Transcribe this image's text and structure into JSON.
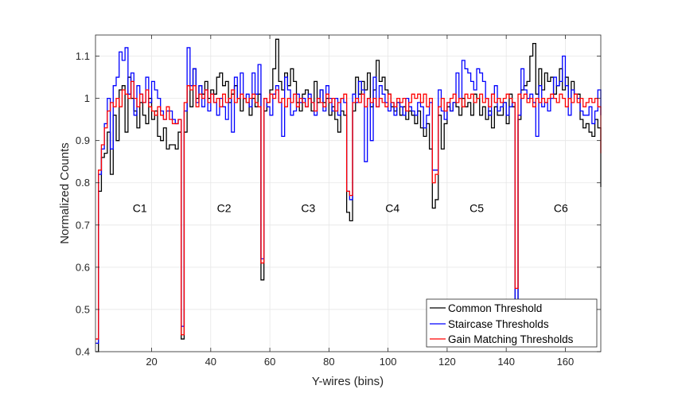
{
  "chart_data": {
    "type": "line",
    "style": "stairs",
    "title": "",
    "xlabel": "Y-wires (bins)",
    "ylabel": "Normalized Counts",
    "xlim": [
      1,
      172
    ],
    "ylim": [
      0.4,
      1.15
    ],
    "xticks": [
      20,
      40,
      60,
      80,
      100,
      120,
      140,
      160
    ],
    "yticks": [
      0.4,
      0.5,
      0.6,
      0.7,
      0.8,
      0.9,
      1.0,
      1.1
    ],
    "ytick_labels": [
      "0.4",
      "0.5",
      "0.6",
      "0.7",
      "0.8",
      "0.9",
      "1",
      "1.1"
    ],
    "grid": true,
    "legend_position": "bottom-right",
    "annotations": [
      {
        "text": "C1",
        "x": 16,
        "y": 0.74
      },
      {
        "text": "C2",
        "x": 44.5,
        "y": 0.74
      },
      {
        "text": "C3",
        "x": 73,
        "y": 0.74
      },
      {
        "text": "C4",
        "x": 101.5,
        "y": 0.74
      },
      {
        "text": "C5",
        "x": 130,
        "y": 0.74
      },
      {
        "text": "C6",
        "x": 158.5,
        "y": 0.74
      }
    ],
    "series": [
      {
        "name": "Common Threshold",
        "color": "#000000",
        "x_start": 1,
        "values": [
          0.4,
          0.78,
          0.86,
          0.87,
          0.92,
          0.82,
          0.96,
          0.9,
          1.02,
          1.03,
          0.92,
          1.05,
          1.0,
          0.97,
          0.93,
          0.99,
          0.96,
          0.94,
          1.0,
          0.95,
          0.97,
          0.91,
          0.9,
          0.93,
          0.88,
          0.89,
          0.89,
          0.88,
          0.92,
          0.43,
          0.92,
          1.03,
          0.98,
          1.07,
          1.0,
          1.03,
          1.01,
          1.04,
          1.0,
          1.02,
          1.01,
          1.05,
          1.06,
          1.03,
          1.04,
          0.99,
          1.01,
          1.03,
          1.0,
          0.97,
          1.0,
          0.99,
          0.96,
          1.0,
          0.98,
          1.01,
          0.57,
          0.97,
          0.99,
          1.02,
          1.07,
          1.14,
          1.04,
          1.02,
          1.06,
          1.03,
          1.07,
          1.04,
          0.99,
          0.97,
          1.01,
          1.02,
          1.0,
          0.97,
          1.04,
          0.99,
          1.02,
          0.99,
          1.0,
          0.96,
          0.98,
          0.95,
          0.92,
          0.97,
          0.96,
          0.73,
          0.71,
          0.97,
          1.05,
          1.01,
          1.04,
          1.02,
          1.06,
          0.98,
          1.02,
          1.09,
          1.04,
          1.05,
          1.02,
          1.01,
          0.98,
          0.97,
          0.99,
          0.96,
          0.98,
          0.95,
          0.97,
          0.96,
          0.94,
          0.97,
          0.93,
          0.91,
          0.94,
          0.88,
          0.74,
          0.76,
          0.96,
          0.88,
          0.94,
          0.98,
          0.97,
          0.99,
          0.98,
          0.96,
          1.0,
          0.98,
          0.99,
          0.96,
          1.01,
          1.0,
          0.96,
          0.98,
          0.95,
          0.97,
          0.93,
          0.98,
          0.96,
          0.96,
          0.99,
          0.94,
          1.01,
          0.98,
          0.51,
          0.95,
          1.02,
          1.03,
          1.04,
          1.1,
          1.13,
          1.01,
          1.07,
          1.02,
          1.06,
          1.04,
          1.05,
          1.01,
          1.03,
          1.07,
          1.02,
          1.05,
          1.0,
          1.04,
          1.01,
          1.01,
          0.95,
          0.93,
          0.94,
          0.92,
          0.91,
          0.95,
          0.93,
          0.79
        ]
      },
      {
        "name": "Staircase Thresholds",
        "color": "#0000ff",
        "x_start": 1,
        "values": [
          0.42,
          0.82,
          0.88,
          0.94,
          1.0,
          0.88,
          1.03,
          1.05,
          1.11,
          1.09,
          1.12,
          1.01,
          1.06,
          0.96,
          1.03,
          1.01,
          0.99,
          1.05,
          0.99,
          1.04,
          1.02,
          1.0,
          0.97,
          0.95,
          0.97,
          0.97,
          0.95,
          0.94,
          0.95,
          0.46,
          0.97,
          1.12,
          1.03,
          1.07,
          0.99,
          1.03,
          0.98,
          1.02,
          0.97,
          1.01,
          0.99,
          0.96,
          1.0,
          0.98,
          0.95,
          1.0,
          0.92,
          1.05,
          1.0,
          1.06,
          1.0,
          1.01,
          0.98,
          1.06,
          1.01,
          1.08,
          0.62,
          1.0,
          0.98,
          0.96,
          1.01,
          1.03,
          0.99,
          0.91,
          1.05,
          1.02,
          0.96,
          0.97,
          1.01,
          0.99,
          1.0,
          0.98,
          1.01,
          0.99,
          0.96,
          1.0,
          1.02,
          0.97,
          1.03,
          1.0,
          0.97,
          1.0,
          0.96,
          1.0,
          0.99,
          0.78,
          0.76,
          1.01,
          0.99,
          1.04,
          1.02,
          0.85,
          1.0,
          0.9,
          1.05,
          0.98,
          1.03,
          1.01,
          0.99,
          0.97,
          0.99,
          0.96,
          0.99,
          0.98,
          0.96,
          1.0,
          0.98,
          0.97,
          0.96,
          0.99,
          0.98,
          0.93,
          0.96,
          0.99,
          0.83,
          0.83,
          1.02,
          0.97,
          0.95,
          0.99,
          0.97,
          0.99,
          1.06,
          1.0,
          1.09,
          1.07,
          1.06,
          1.04,
          1.02,
          1.07,
          1.06,
          1.04,
          1.0,
          0.96,
          1.01,
          1.03,
          0.97,
          0.98,
          0.99,
          0.96,
          0.98,
          0.99,
          0.52,
          0.96,
          1.07,
          1.02,
          1.0,
          1.01,
          0.99,
          0.91,
          1.03,
          0.98,
          0.99,
          0.97,
          1.0,
          1.05,
          1.03,
          1.04,
          1.1,
          1.03,
          0.96,
          1.02,
          1.01,
          1.0,
          0.97,
          0.96,
          0.96,
          0.98,
          0.94,
          0.97,
          1.02,
          0.96,
          0.98
        ]
      },
      {
        "name": "Gain Matching Thresholds",
        "color": "#ff0000",
        "x_start": 1,
        "values": [
          0.43,
          0.83,
          0.89,
          0.93,
          0.97,
          0.99,
          0.98,
          1.0,
          0.98,
          1.02,
          1.01,
          1.0,
          1.04,
          1.0,
          0.98,
          1.01,
          0.99,
          1.02,
          0.98,
          0.97,
          0.96,
          0.98,
          0.96,
          0.95,
          0.98,
          0.95,
          0.94,
          0.94,
          0.95,
          0.44,
          0.99,
          1.03,
          1.02,
          1.03,
          0.98,
          1.01,
          1.0,
          1.02,
          0.99,
          1.01,
          0.99,
          1.0,
          0.98,
          1.01,
          0.99,
          1.0,
          1.02,
          0.99,
          1.0,
          1.01,
          1.0,
          0.99,
          1.0,
          1.01,
          0.99,
          0.98,
          0.61,
          1.0,
          0.99,
          1.01,
          1.0,
          1.02,
          0.99,
          1.0,
          0.98,
          1.0,
          0.99,
          1.01,
          0.98,
          1.0,
          0.99,
          0.98,
          1.0,
          0.99,
          0.97,
          1.0,
          0.99,
          0.98,
          1.01,
          0.99,
          1.0,
          0.97,
          0.99,
          1.0,
          1.01,
          0.78,
          0.77,
          0.99,
          1.0,
          0.99,
          1.01,
          0.98,
          1.0,
          0.99,
          1.0,
          0.98,
          1.0,
          0.99,
          0.98,
          1.01,
          0.99,
          0.98,
          1.0,
          0.99,
          1.0,
          0.97,
          0.99,
          1.01,
          1.0,
          1.01,
          0.99,
          1.01,
          0.98,
          1.0,
          0.8,
          0.82,
          0.98,
          1.0,
          0.97,
          0.99,
          1.0,
          1.01,
          0.99,
          1.0,
          0.98,
          1.01,
          1.0,
          1.01,
          0.99,
          1.0,
          1.01,
          0.99,
          1.0,
          0.98,
          1.01,
          0.99,
          1.0,
          0.99,
          1.0,
          1.01,
          1.0,
          0.99,
          0.55,
          1.01,
          1.0,
          1.01,
          0.99,
          1.0,
          0.98,
          1.0,
          0.99,
          1.0,
          0.99,
          1.0,
          1.01,
          1.0,
          0.99,
          1.01,
          1.0,
          0.98,
          1.0,
          0.99,
          1.01,
          0.99,
          1.0,
          0.98,
          0.99,
          1.0,
          0.99,
          1.0,
          0.98,
          0.97,
          0.87
        ]
      }
    ]
  }
}
